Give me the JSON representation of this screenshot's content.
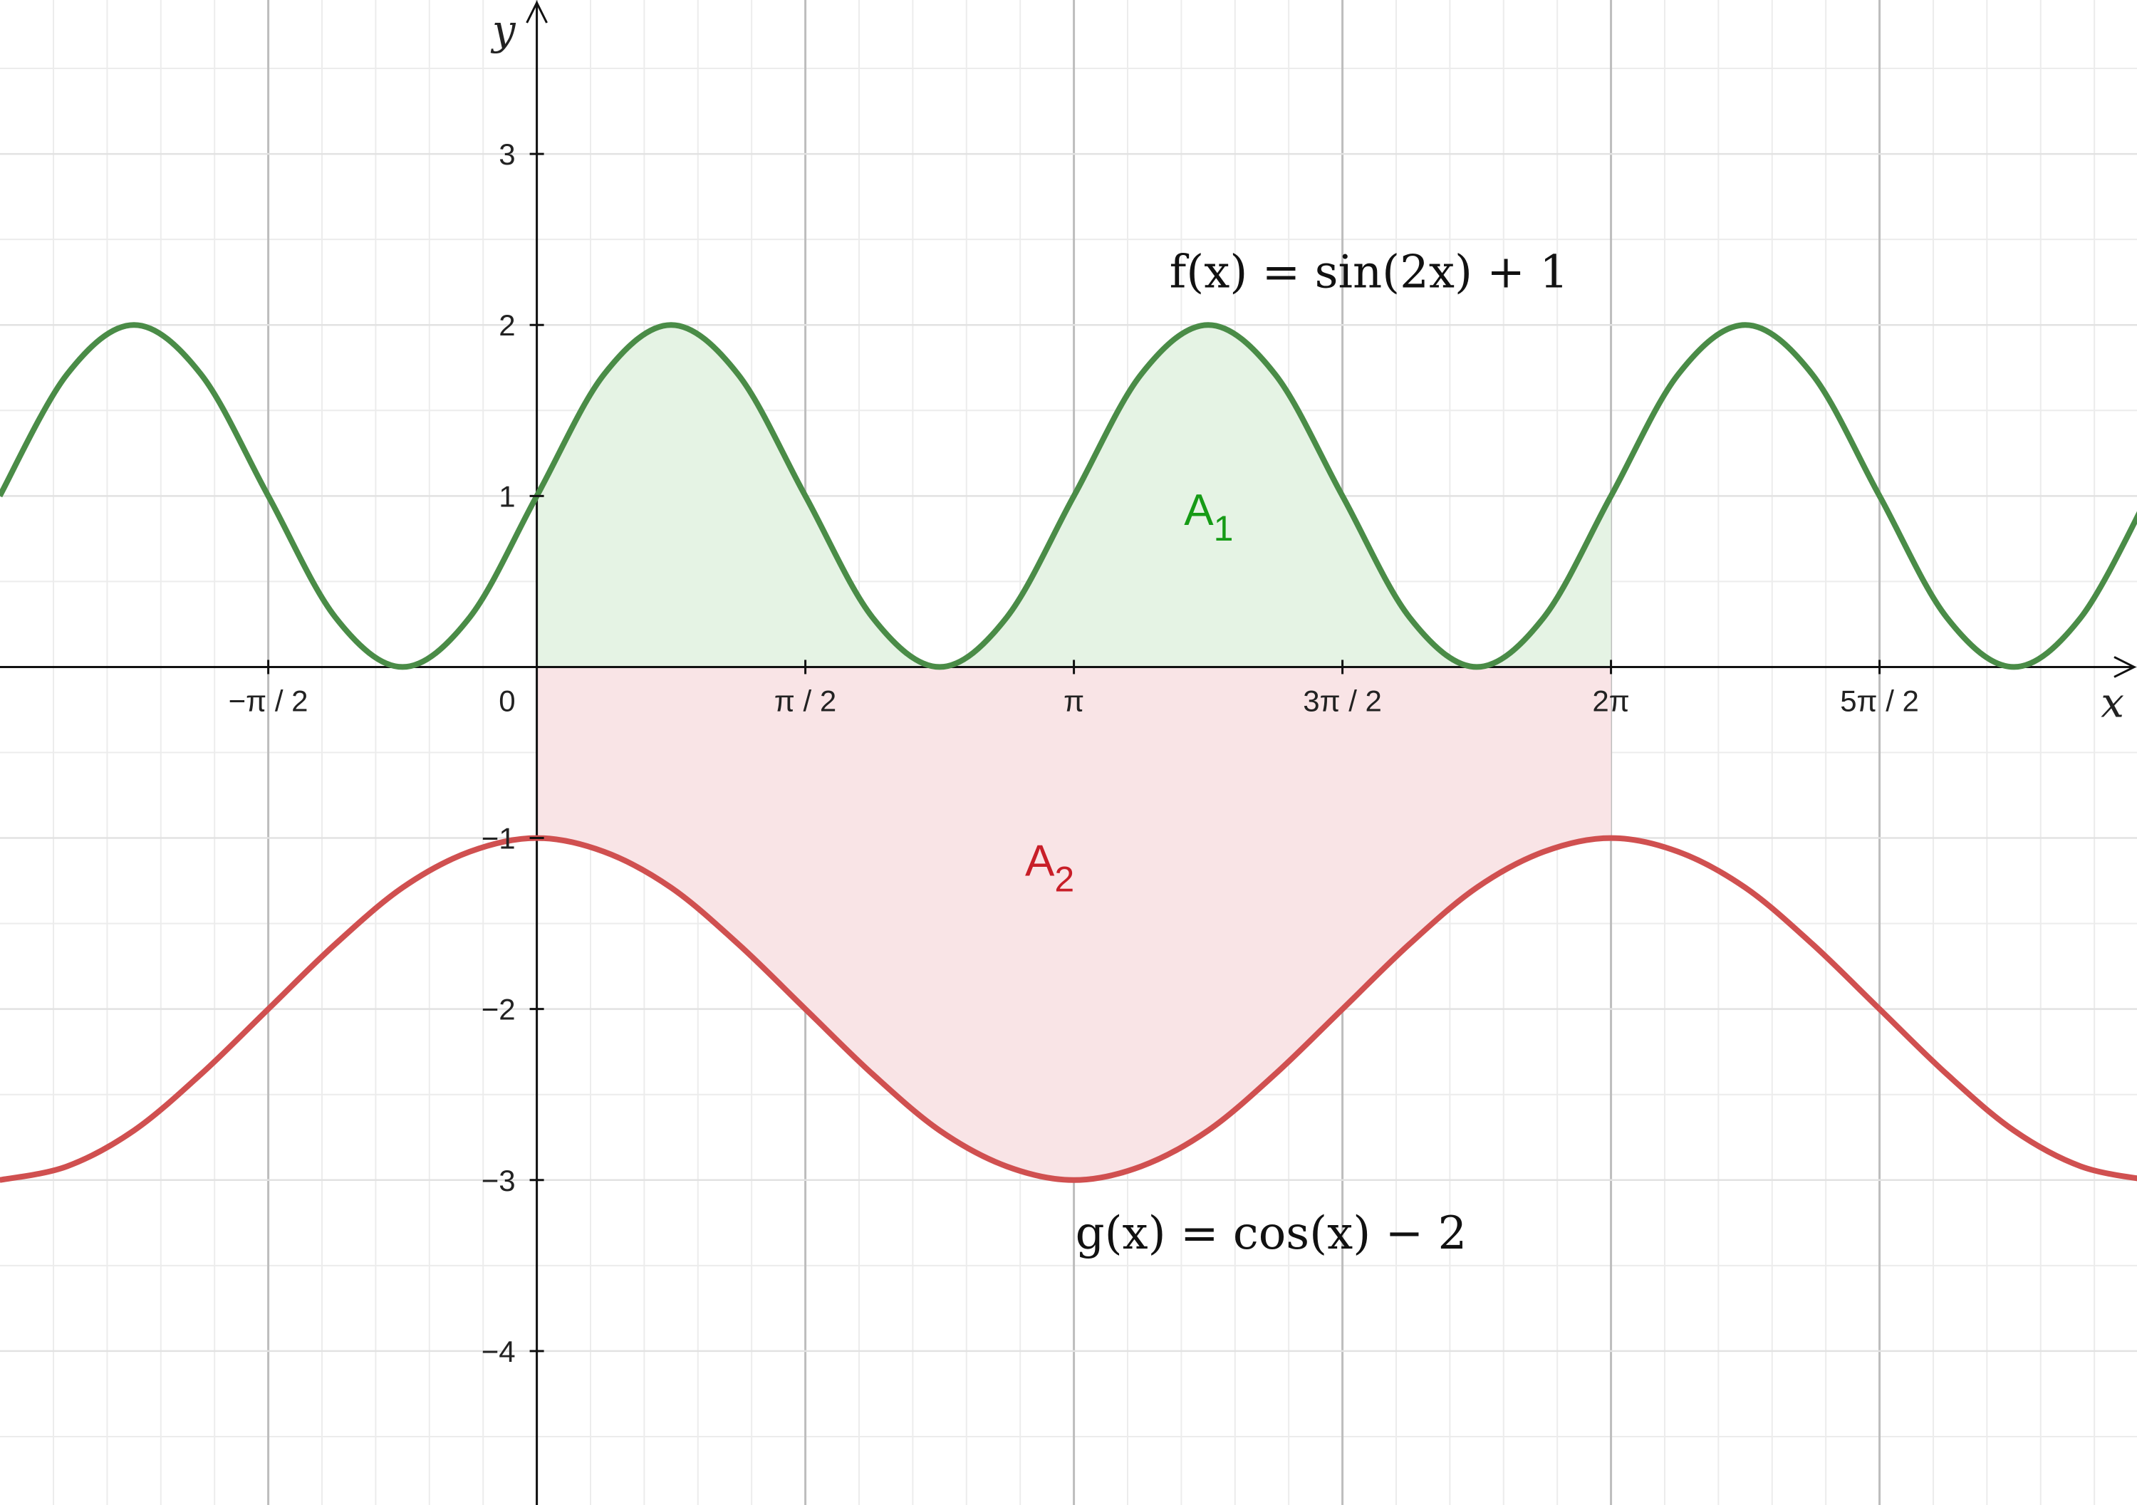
{
  "chart_data": {
    "type": "line",
    "title": "",
    "xlabel": "x",
    "ylabel": "y",
    "xlim": [
      -3.14,
      9.36
    ],
    "ylim": [
      -4.9,
      3.9
    ],
    "grid": true,
    "x_ticks": [
      {
        "value": -1.5708,
        "label": "−π / 2"
      },
      {
        "value": 1.5708,
        "label": "π / 2"
      },
      {
        "value": 3.1416,
        "label": "π"
      },
      {
        "value": 4.7124,
        "label": "3π / 2"
      },
      {
        "value": 6.2832,
        "label": "2π"
      },
      {
        "value": 7.854,
        "label": "5π / 2"
      }
    ],
    "origin_label": "0",
    "y_ticks": [
      {
        "value": 3,
        "label": "3"
      },
      {
        "value": 2,
        "label": "2"
      },
      {
        "value": 1,
        "label": "1"
      },
      {
        "value": -1,
        "label": "−1"
      },
      {
        "value": -2,
        "label": "−2"
      },
      {
        "value": -3,
        "label": "−3"
      },
      {
        "value": -4,
        "label": "−4"
      }
    ],
    "series": [
      {
        "name": "f(x) = sin(2x) + 1",
        "color": "#4a8c47",
        "x": [
          -3.1416,
          -2.7489,
          -2.3562,
          -1.9635,
          -1.5708,
          -1.1781,
          -0.7854,
          -0.3927,
          0,
          0.3927,
          0.7854,
          1.1781,
          1.5708,
          1.9635,
          2.3562,
          2.7489,
          3.1416,
          3.5343,
          3.927,
          4.3197,
          4.7124,
          5.1051,
          5.4978,
          5.8905,
          6.2832,
          6.6759,
          7.0686,
          7.4613,
          7.854,
          8.2467,
          8.6394,
          9.0321,
          9.4248
        ],
        "y": [
          1,
          1.71,
          2,
          1.71,
          1,
          0.29,
          0,
          0.29,
          1,
          1.71,
          2,
          1.71,
          1,
          0.29,
          0,
          0.29,
          1,
          1.71,
          2,
          1.71,
          1,
          0.29,
          0,
          0.29,
          1,
          1.71,
          2,
          1.71,
          1,
          0.29,
          0,
          0.29,
          1
        ]
      },
      {
        "name": "g(x) = cos(x) − 2",
        "color": "#d05050",
        "x": [
          -3.1416,
          -2.7489,
          -2.3562,
          -1.9635,
          -1.5708,
          -1.1781,
          -0.7854,
          -0.3927,
          0,
          0.3927,
          0.7854,
          1.1781,
          1.5708,
          1.9635,
          2.3562,
          2.7489,
          3.1416,
          3.5343,
          3.927,
          4.3197,
          4.7124,
          5.1051,
          5.4978,
          5.8905,
          6.2832,
          6.6759,
          7.0686,
          7.4613,
          7.854,
          8.2467,
          8.6394,
          9.0321,
          9.4248
        ],
        "y": [
          -3,
          -2.92,
          -2.71,
          -2.38,
          -2,
          -1.62,
          -1.29,
          -1.08,
          -1,
          -1.08,
          -1.29,
          -1.62,
          -2,
          -2.38,
          -2.71,
          -2.92,
          -3,
          -2.92,
          -2.71,
          -2.38,
          -2,
          -1.62,
          -1.29,
          -1.08,
          -1,
          -1.08,
          -1.29,
          -1.62,
          -2,
          -2.38,
          -2.71,
          -2.92,
          -3
        ]
      }
    ],
    "regions": [
      {
        "name": "A1",
        "label_main": "A",
        "label_sub": "1",
        "between": "f(x) and x-axis",
        "x_from": 0,
        "x_to": 6.2832,
        "color": "#169b16",
        "fill": "#e5f3e4",
        "label_at": [
          3.93,
          0.83
        ]
      },
      {
        "name": "A2",
        "label_main": "A",
        "label_sub": "2",
        "between": "x-axis and g(x)",
        "x_from": 0,
        "x_to": 6.2832,
        "color": "#c81e28",
        "fill": "#f9e4e6",
        "label_at": [
          3.0,
          -1.22
        ]
      }
    ],
    "formula_labels": [
      {
        "text": "f(x) = sin(2x) + 1",
        "at": [
          3.7,
          2.22
        ]
      },
      {
        "text": "g(x) = cos(x) − 2",
        "at": [
          3.15,
          -3.4
        ]
      }
    ]
  }
}
